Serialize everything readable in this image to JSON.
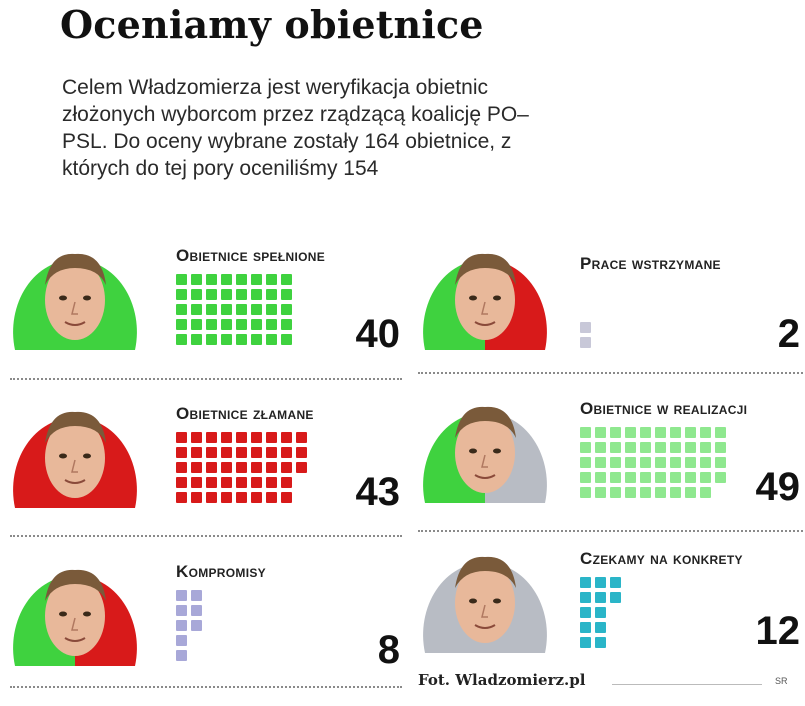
{
  "header": {
    "title": "Oceniamy obietnice",
    "intro": "Celem Władzomierza jest weryfikacja obietnic złożonych wyborcom przez rządzącą koalicję PO–PSL. Do oceny wybrane zostały 164 obietnice, z których do tej pory oceniliśmy 154"
  },
  "chart_data": {
    "type": "bar",
    "categories": [
      "Obietnice spełnione",
      "Obietnice złamane",
      "Kompromisy",
      "Prace wstrzymane",
      "Obietnice w realizacji",
      "Czekamy na konkrety"
    ],
    "values": [
      40,
      43,
      8,
      2,
      49,
      12
    ],
    "colors": [
      "#3fd23f",
      "#d81a1a",
      "#a8a8d8",
      "#c8c8d8",
      "#8fe88f",
      "#2ab5c8"
    ],
    "ylim": [
      0,
      49
    ]
  },
  "panels": [
    {
      "label": "Obietnice spełnione",
      "count": "40",
      "face_colors": [
        "#3fd23f",
        "#3fd23f"
      ]
    },
    {
      "label": "Obietnice złamane",
      "count": "43",
      "face_colors": [
        "#d81a1a",
        "#d81a1a"
      ]
    },
    {
      "label": "Kompromisy",
      "count": "8",
      "face_colors": [
        "#3fd23f",
        "#d81a1a"
      ]
    },
    {
      "label": "Prace wstrzymane",
      "count": "2",
      "face_colors": [
        "#3fd23f",
        "#d81a1a"
      ]
    },
    {
      "label": "Obietnice w realizacji",
      "count": "49",
      "face_colors": [
        "#3fd23f",
        "#b8bcc4"
      ]
    },
    {
      "label": "Czekamy na konkrety",
      "count": "12",
      "face_colors": [
        "#b8bcc4",
        "#b8bcc4"
      ]
    }
  ],
  "footer": {
    "credit": "Fot. Wladzomierz.pl",
    "signature": "SR"
  }
}
